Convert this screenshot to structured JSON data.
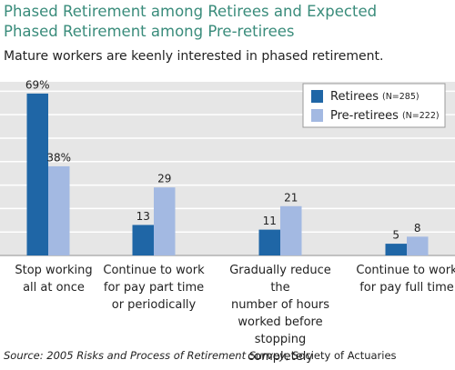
{
  "chart_data": {
    "type": "bar",
    "title": "Phased Retirement among Retirees and Expected\nPhased Retirement among Pre-retirees",
    "subtitle": "Mature workers are keenly interested in phased retirement.",
    "categories": [
      "Stop working\nall at once",
      "Continue to work\nfor pay part time\nor periodically",
      "Gradually reduce the\nnumber of hours\nworked before\nstopping completely",
      "Continue to work\nfor pay full time"
    ],
    "series": [
      {
        "name": "Retirees",
        "sample": "(N=285)",
        "color": "#1f66a6",
        "values": [
          69,
          13,
          11,
          5
        ],
        "value_labels": [
          "69%",
          "13",
          "11",
          "5"
        ]
      },
      {
        "name": "Pre-retirees",
        "sample": "(N=222)",
        "color": "#a3b9e2",
        "values": [
          38,
          29,
          21,
          8
        ],
        "value_labels": [
          "38%",
          "29",
          "21",
          "8"
        ]
      }
    ],
    "ylim": [
      0,
      74
    ],
    "yticks": [
      0,
      10,
      20,
      30,
      40,
      50,
      60,
      70
    ],
    "grid": true,
    "legend": "top-right",
    "source": "Source: 2005 Risks and Process of Retirement Survey",
    "source_org": ", Society of Actuaries"
  }
}
